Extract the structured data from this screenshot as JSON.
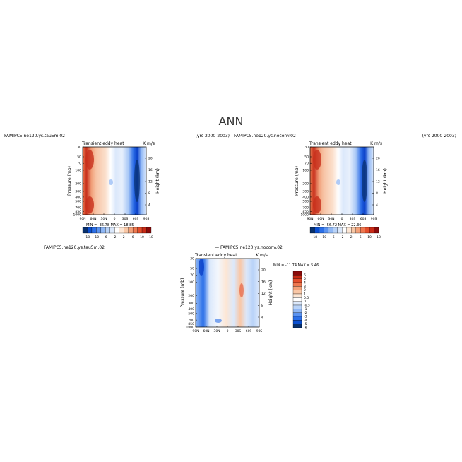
{
  "figure": {
    "title": "ANN"
  },
  "chart_data": [
    {
      "type": "heatmap",
      "case_label": "FAMIPC5.ne120.ys.tau5m.02",
      "title": "Transient eddy heat",
      "units": "K m/s",
      "years": "(yrs 2000-2003)",
      "ylabel": "Pressure (mb)",
      "ylabel_right": "Height (km)",
      "x_ticks": [
        "90N",
        "60N",
        "30N",
        "0",
        "30S",
        "60S",
        "90S"
      ],
      "y_ticks": [
        "30",
        "50",
        "70",
        "100",
        "200",
        "300",
        "400",
        "500",
        "700",
        "850",
        "1000"
      ],
      "height_ticks": [
        "20",
        "16",
        "12",
        "8",
        "4"
      ],
      "ylog": true,
      "stats": {
        "min_label": "MIN =",
        "min": "-36.78",
        "max_label": "MAX =",
        "max": "18.85"
      },
      "colorbar": {
        "orientation": "horizontal",
        "tick_labels": [
          "-18",
          "-10",
          "-6",
          "-2",
          "2",
          "6",
          "10",
          "18"
        ]
      },
      "field": "north positive (red) band near 60N-90N throughout column, south negative (blue) band near 60S, weak values in tropics"
    },
    {
      "type": "heatmap",
      "case_label": "FAMIPC5.ne120.ys.noconv.02",
      "title": "Transient eddy heat",
      "units": "K m/s",
      "years": "(yrs 2000-2003)",
      "ylabel": "Pressure (mb)",
      "ylabel_right": "Height (km)",
      "x_ticks": [
        "90N",
        "60N",
        "30N",
        "0",
        "30S",
        "60S",
        "90S"
      ],
      "y_ticks": [
        "30",
        "50",
        "70",
        "100",
        "200",
        "300",
        "400",
        "500",
        "700",
        "850",
        "1000"
      ],
      "height_ticks": [
        "20",
        "16",
        "12",
        "8",
        "4"
      ],
      "ylog": true,
      "stats": {
        "min_label": "MIN =",
        "min": "-56.72",
        "max_label": "MAX =",
        "max": "22.36"
      },
      "colorbar": {
        "orientation": "horizontal",
        "tick_labels": [
          "-18",
          "-10",
          "-6",
          "-2",
          "2",
          "6",
          "10",
          "18"
        ]
      }
    },
    {
      "type": "heatmap",
      "case_label": "FAMIPC5.ne120.ys.tau5m.02",
      "case_label2": "FAMIPC5.ne120.ys.noconv.02",
      "title": "Transient eddy heat",
      "units": "K m/s",
      "ylabel": "Pressure (mb)",
      "ylabel_right": "Height (km)",
      "x_ticks": [
        "90N",
        "60N",
        "30N",
        "0",
        "30S",
        "60S",
        "90S"
      ],
      "y_ticks": [
        "30",
        "50",
        "70",
        "100",
        "200",
        "300",
        "400",
        "500",
        "700",
        "850",
        "1000"
      ],
      "height_ticks": [
        "20",
        "16",
        "12",
        "8",
        "4"
      ],
      "ylog": true,
      "stats": {
        "min_label": "MIN =",
        "min": "-11.74",
        "max_label": "MAX =",
        "max": "5.46"
      },
      "colorbar": {
        "orientation": "vertical",
        "tick_labels": [
          "6",
          "5",
          "4",
          "3",
          "2",
          "1",
          "0.5",
          "0",
          "-0.5",
          "-1",
          "-2",
          "-3",
          "-4",
          "-5",
          "-6"
        ]
      }
    }
  ],
  "colors": {
    "diverging": [
      "#08306b",
      "#0a4fd1",
      "#2b6fe8",
      "#5b93f0",
      "#8fb7f5",
      "#b9d3f8",
      "#dbe8fb",
      "#ffffff",
      "#fde6d4",
      "#f9c7a6",
      "#f4a27a",
      "#ee7850",
      "#e44e2c",
      "#c82a16",
      "#8b0a0a"
    ]
  }
}
